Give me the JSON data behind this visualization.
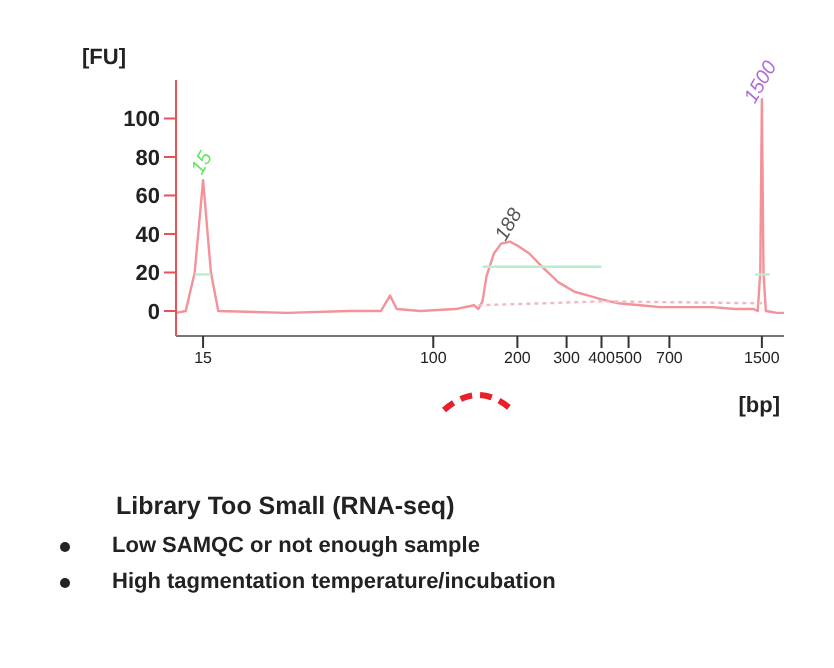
{
  "chart_data": {
    "type": "line",
    "title": "Library Too Small (RNA-seq)",
    "xlabel": "[bp]",
    "ylabel": "[FU]",
    "x": [
      12,
      13,
      14,
      15,
      16,
      17,
      30,
      50,
      65,
      70,
      74,
      90,
      120,
      140,
      145,
      150,
      155,
      165,
      175,
      188,
      200,
      220,
      245,
      280,
      320,
      360,
      400,
      460,
      550,
      650,
      800,
      1000,
      1200,
      1400,
      1450,
      1480,
      1500,
      1520,
      1550,
      1700,
      1800
    ],
    "series": [
      {
        "color": "#f4929a",
        "values": [
          -1,
          0,
          20,
          68,
          20,
          0,
          -1,
          0,
          0,
          8,
          1,
          0,
          1,
          3,
          1,
          5,
          18,
          30,
          35,
          36,
          34,
          30,
          23,
          15,
          10,
          8,
          6,
          4,
          3,
          2,
          2,
          2,
          1,
          1,
          0,
          20,
          110,
          20,
          0,
          -1,
          -1
        ]
      },
      {
        "type": "line",
        "color": "#f4b8c0",
        "line_style": "dotted",
        "x": [
          145,
          250,
          400,
          1500
        ],
        "values": [
          3,
          4,
          5,
          4
        ]
      },
      {
        "type": "line",
        "color": "#b8eec8",
        "x": [
          150,
          400
        ],
        "values": [
          23,
          23
        ]
      },
      {
        "type": "line",
        "color": "#b8eec8",
        "x": [
          14,
          16
        ],
        "values": [
          19,
          19
        ]
      },
      {
        "type": "line",
        "color": "#b8eec8",
        "x": [
          1420,
          1600
        ],
        "values": [
          19,
          19
        ]
      }
    ],
    "log": "x",
    "xlim": [
      12,
      1800
    ],
    "xticks": [
      15,
      100,
      200,
      300,
      400,
      500,
      700,
      1500
    ],
    "ylim": [
      -13,
      120
    ],
    "yticks": [
      0,
      20,
      40,
      60,
      80,
      100
    ],
    "marker": "none",
    "line_style": "solid",
    "annotations": [
      {
        "text": "15",
        "x": 15,
        "y": 68
      },
      {
        "text": "188",
        "x": 188,
        "y": 36
      },
      {
        "text": "1500",
        "x": 1500,
        "y": 110
      },
      "Low SAMQC or not enough sample",
      "High tagmentation temperature/incubation"
    ]
  }
}
